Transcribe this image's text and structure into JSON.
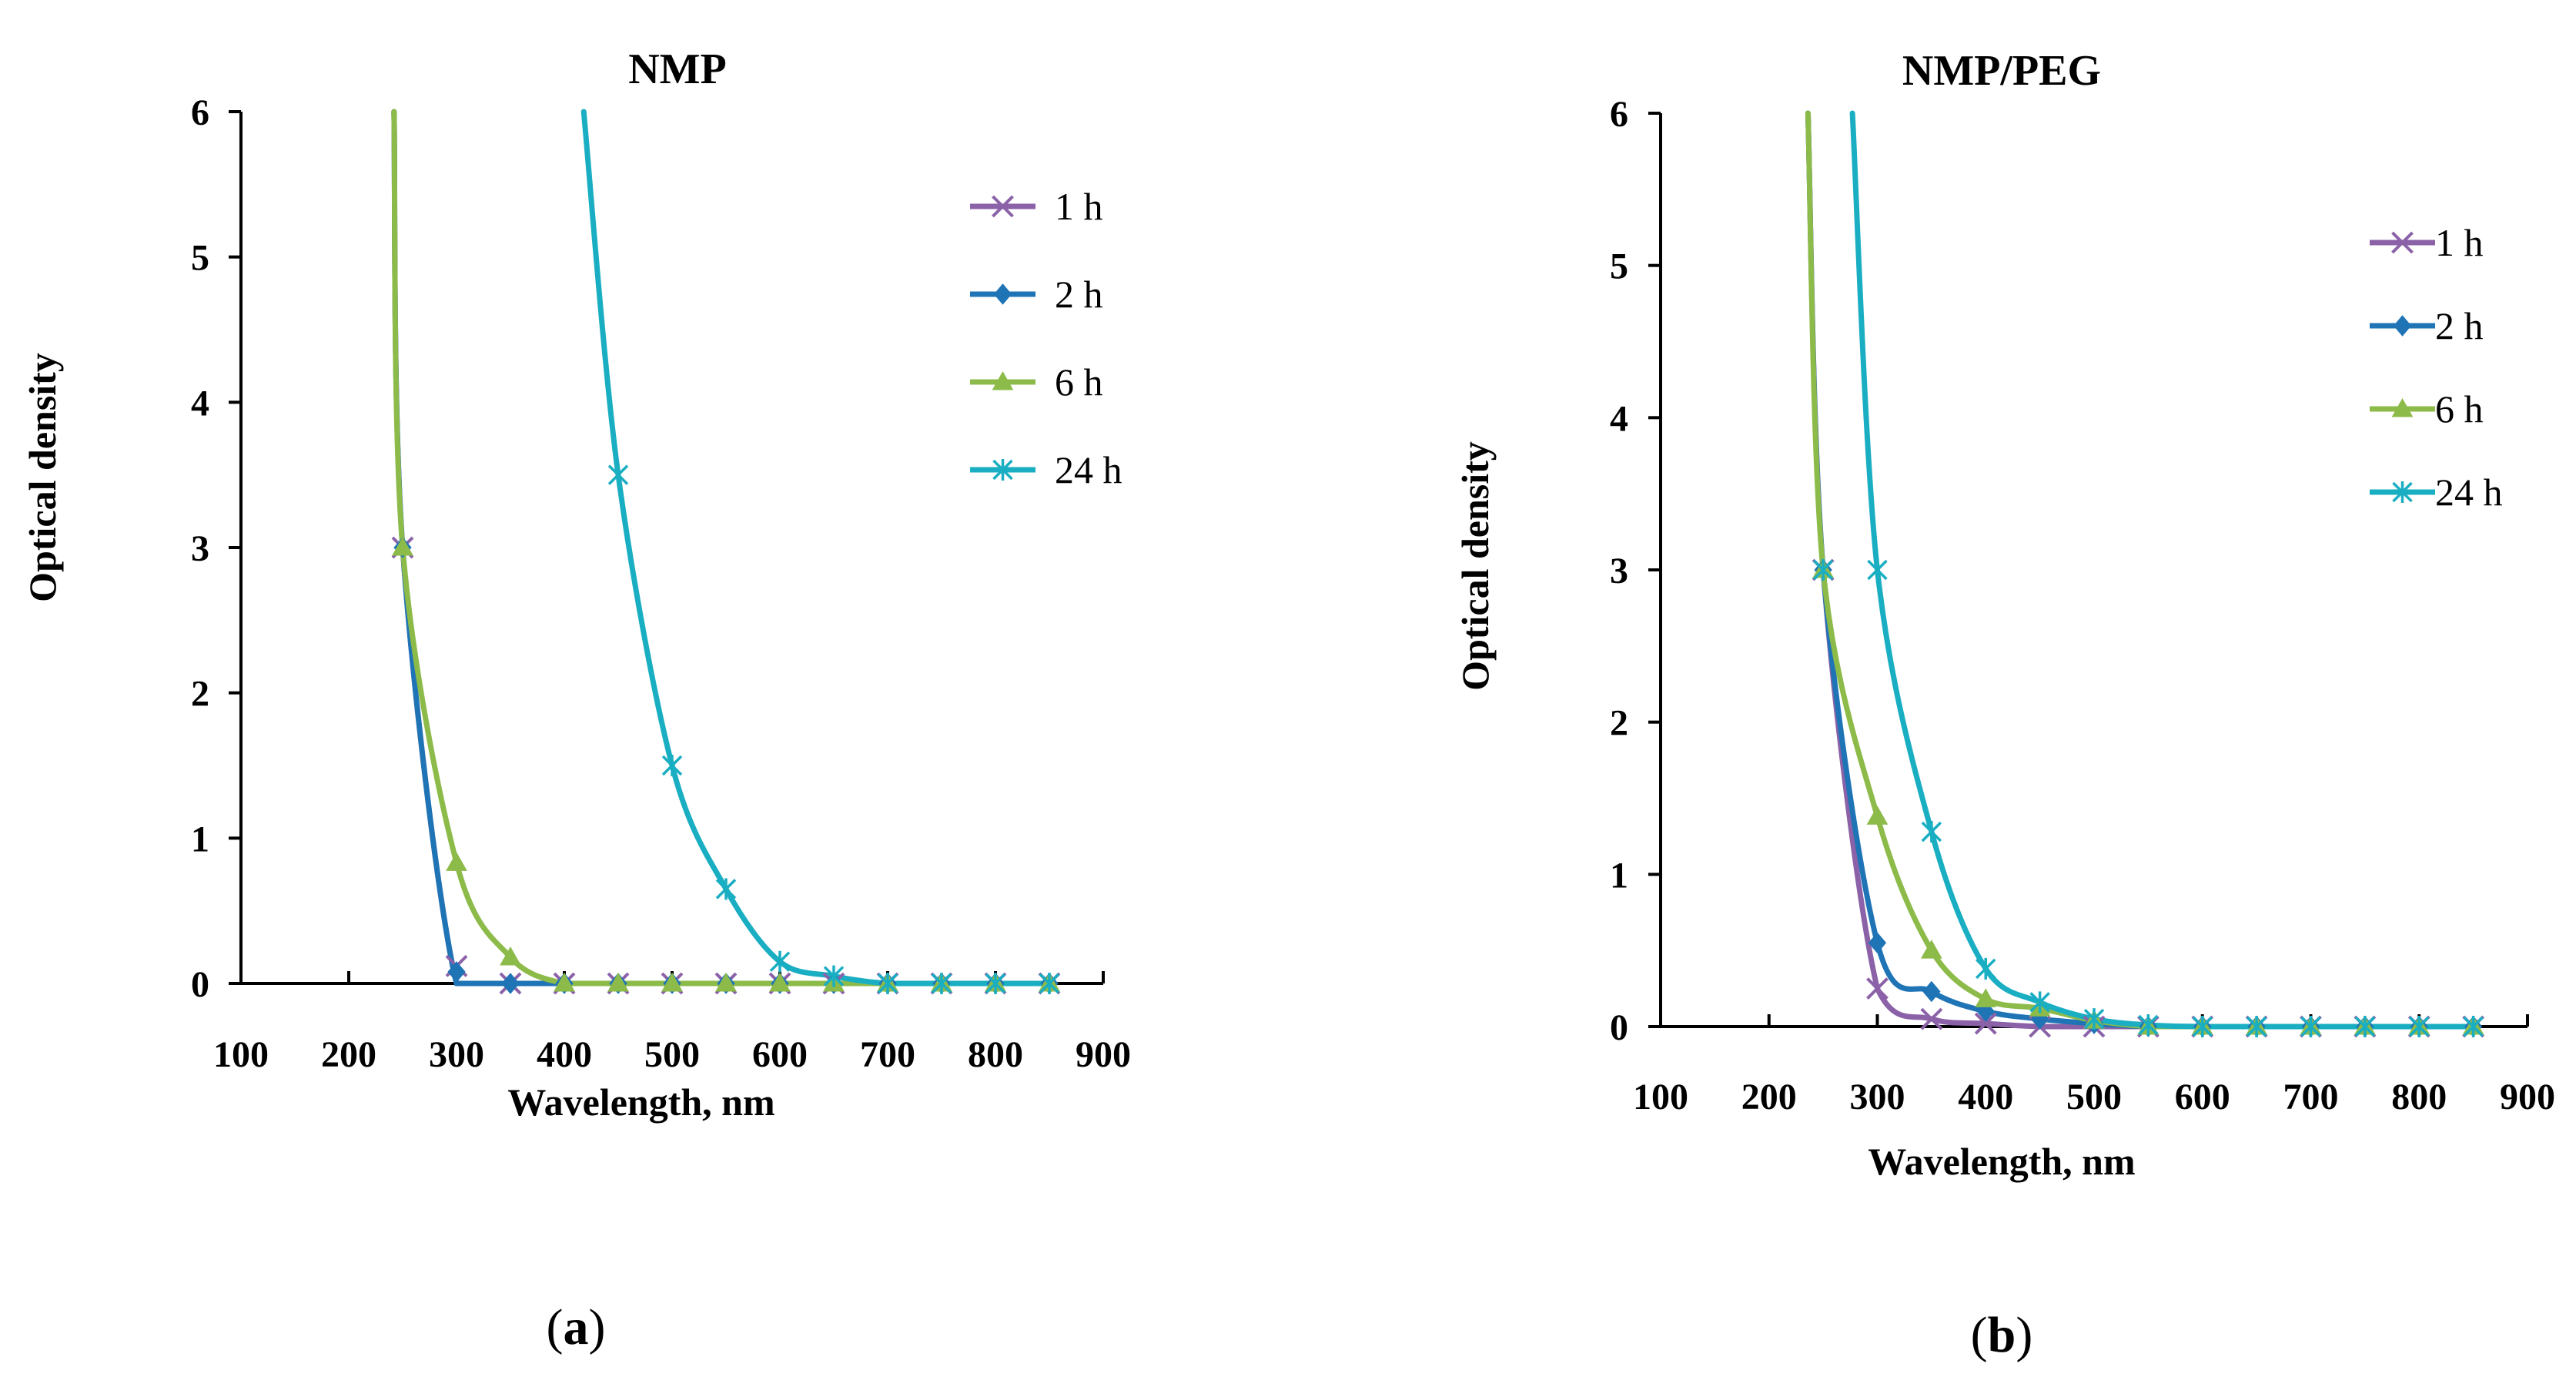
{
  "captions": [
    "a",
    "b"
  ],
  "colors": {
    "1 h": "#8b62a8",
    "2 h": "#1f74b6",
    "6 h": "#8dbb4a",
    "24 h": "#1aaec2"
  },
  "chart_data": [
    {
      "type": "line",
      "title": "NMP",
      "xlabel": "Wavelength, nm",
      "ylabel": "Optical density",
      "xlim": [
        100,
        900
      ],
      "ylim": [
        0,
        6
      ],
      "xticks": [
        100,
        200,
        300,
        400,
        500,
        600,
        700,
        800,
        900
      ],
      "yticks": [
        0,
        1,
        2,
        3,
        4,
        5,
        6
      ],
      "grid": false,
      "legend_position": "right",
      "series": [
        {
          "name": "1 h",
          "marker": "x",
          "x": [
            250,
            300,
            350,
            400,
            450,
            500,
            550,
            600,
            650,
            700,
            750,
            800,
            850
          ],
          "y": [
            3.0,
            0.12,
            0.0,
            0.0,
            0.0,
            0.0,
            0.0,
            0.0,
            0.0,
            0.0,
            0.0,
            0.0,
            0.0
          ],
          "curve_x": [
            242,
            250,
            300,
            350,
            400,
            450,
            500,
            550,
            600,
            650,
            700,
            750,
            800,
            850
          ],
          "curve_y": [
            6.0,
            3.0,
            0.0,
            0.0,
            0.0,
            0.0,
            0.0,
            0.0,
            0.0,
            0.0,
            0.0,
            0.0,
            0.0,
            0.0
          ]
        },
        {
          "name": "2 h",
          "marker": "diamond",
          "x": [
            250,
            300,
            350,
            400,
            450,
            500,
            550,
            600,
            650,
            700,
            750,
            800,
            850
          ],
          "y": [
            3.0,
            0.08,
            0.0,
            0.0,
            0.0,
            0.0,
            0.0,
            0.0,
            0.0,
            0.0,
            0.0,
            0.0,
            0.0
          ],
          "curve_x": [
            242,
            250,
            300,
            350,
            400,
            450,
            500,
            550,
            600,
            650,
            700,
            750,
            800,
            850
          ],
          "curve_y": [
            6.0,
            3.0,
            0.0,
            0.0,
            0.0,
            0.0,
            0.0,
            0.0,
            0.0,
            0.0,
            0.0,
            0.0,
            0.0,
            0.0
          ]
        },
        {
          "name": "6 h",
          "marker": "triangle",
          "x": [
            250,
            300,
            350,
            400,
            450,
            500,
            550,
            600,
            650,
            700,
            750,
            800,
            850
          ],
          "y": [
            3.0,
            0.83,
            0.18,
            0.0,
            0.0,
            0.0,
            0.0,
            0.0,
            0.0,
            0.0,
            0.0,
            0.0,
            0.0
          ],
          "curve_x": [
            242,
            250,
            300,
            350,
            400,
            450,
            500,
            550,
            600,
            650,
            700,
            750,
            800,
            850
          ],
          "curve_y": [
            6.0,
            3.0,
            0.83,
            0.18,
            0.0,
            0.0,
            0.0,
            0.0,
            0.0,
            0.0,
            0.0,
            0.0,
            0.0,
            0.0
          ]
        },
        {
          "name": "24 h",
          "marker": "asterisk",
          "x": [
            450,
            500,
            550,
            600,
            650,
            700,
            750,
            800,
            850
          ],
          "y": [
            3.5,
            1.5,
            0.65,
            0.15,
            0.05,
            0.0,
            0.0,
            0.0,
            0.0
          ],
          "curve_x": [
            418,
            450,
            500,
            550,
            600,
            650,
            700,
            750,
            800,
            850
          ],
          "curve_y": [
            6.0,
            3.5,
            1.5,
            0.65,
            0.15,
            0.05,
            0.0,
            0.0,
            0.0,
            0.0
          ]
        }
      ]
    },
    {
      "type": "line",
      "title": "NMP/PEG",
      "xlabel": "Wavelength, nm",
      "ylabel": "Optical density",
      "xlim": [
        100,
        900
      ],
      "ylim": [
        0,
        6
      ],
      "xticks": [
        100,
        200,
        300,
        400,
        500,
        600,
        700,
        800,
        900
      ],
      "yticks": [
        0,
        1,
        2,
        3,
        4,
        5,
        6
      ],
      "grid": false,
      "legend_position": "right",
      "series": [
        {
          "name": "1 h",
          "marker": "x",
          "x": [
            250,
            300,
            350,
            400,
            450,
            500,
            550,
            600,
            650,
            700,
            750,
            800,
            850
          ],
          "y": [
            3.0,
            0.25,
            0.05,
            0.02,
            0.0,
            0.0,
            0.0,
            0.0,
            0.0,
            0.0,
            0.0,
            0.0,
            0.0
          ],
          "curve_x": [
            236,
            250,
            300,
            350,
            400,
            450,
            500,
            550,
            600,
            650,
            700,
            750,
            800,
            850
          ],
          "curve_y": [
            6.0,
            3.0,
            0.25,
            0.05,
            0.02,
            0.0,
            0.0,
            0.0,
            0.0,
            0.0,
            0.0,
            0.0,
            0.0,
            0.0
          ]
        },
        {
          "name": "2 h",
          "marker": "diamond",
          "x": [
            250,
            300,
            350,
            400,
            450,
            500,
            550,
            600,
            650,
            700,
            750,
            800,
            850
          ],
          "y": [
            3.0,
            0.55,
            0.23,
            0.1,
            0.05,
            0.02,
            0.0,
            0.0,
            0.0,
            0.0,
            0.0,
            0.0,
            0.0
          ],
          "curve_x": [
            236,
            250,
            300,
            350,
            400,
            450,
            500,
            550,
            600,
            650,
            700,
            750,
            800,
            850
          ],
          "curve_y": [
            6.0,
            3.0,
            0.55,
            0.23,
            0.1,
            0.05,
            0.02,
            0.0,
            0.0,
            0.0,
            0.0,
            0.0,
            0.0,
            0.0
          ]
        },
        {
          "name": "6 h",
          "marker": "triangle",
          "x": [
            250,
            300,
            350,
            400,
            450,
            500,
            550,
            600,
            650,
            700,
            750,
            800,
            850
          ],
          "y": [
            3.0,
            1.38,
            0.5,
            0.18,
            0.12,
            0.04,
            0.0,
            0.0,
            0.0,
            0.0,
            0.0,
            0.0,
            0.0
          ],
          "curve_x": [
            236,
            250,
            300,
            350,
            400,
            450,
            500,
            550,
            600,
            650,
            700,
            750,
            800,
            850
          ],
          "curve_y": [
            6.0,
            3.0,
            1.38,
            0.5,
            0.18,
            0.12,
            0.04,
            0.0,
            0.0,
            0.0,
            0.0,
            0.0,
            0.0,
            0.0
          ]
        },
        {
          "name": "24 h",
          "marker": "asterisk",
          "x": [
            250,
            300,
            350,
            400,
            450,
            500,
            550,
            600,
            650,
            700,
            750,
            800,
            850
          ],
          "y": [
            3.0,
            3.0,
            1.28,
            0.38,
            0.16,
            0.05,
            0.01,
            0.0,
            0.0,
            0.0,
            0.0,
            0.0,
            0.0
          ],
          "curve_x": [
            277,
            300,
            350,
            400,
            450,
            500,
            550,
            600,
            650,
            700,
            750,
            800,
            850
          ],
          "curve_y": [
            6.0,
            3.0,
            1.28,
            0.38,
            0.16,
            0.05,
            0.01,
            0.0,
            0.0,
            0.0,
            0.0,
            0.0,
            0.0
          ]
        }
      ]
    }
  ]
}
